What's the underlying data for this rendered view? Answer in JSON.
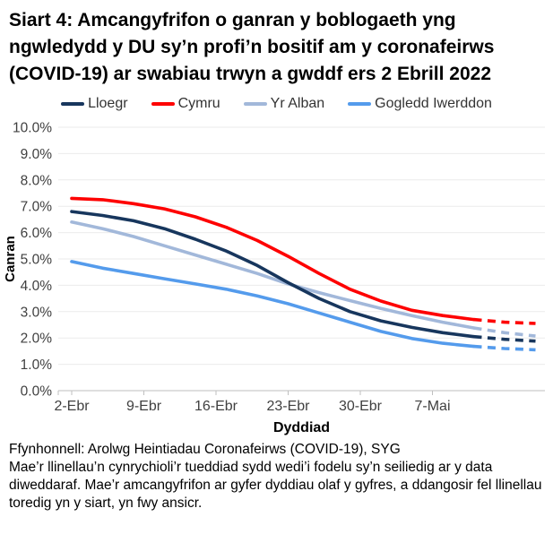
{
  "title": "Siart 4: Amcangyfrifon o ganran y boblogaeth yng ngwledydd y DU sy’n profi’n bositif am y coronafeirws (COVID-19) ar swabiau trwyn a gwddf ers 2 Ebrill 2022",
  "legend": [
    {
      "label": "Lloegr",
      "color": "#17365D"
    },
    {
      "label": "Cymru",
      "color": "#FE0000"
    },
    {
      "label": "Yr Alban",
      "color": "#A2B8DA"
    },
    {
      "label": "Gogledd Iwerddon",
      "color": "#549BEC"
    }
  ],
  "chart_data": {
    "type": "line",
    "title": "Siart 4: Amcangyfrifon o ganran y boblogaeth yng ngwledydd y DU sy’n profi’n bositif am y coronafeirws (COVID-19) ar swabiau trwyn a gwddf ers 2 Ebrill 2022",
    "xlabel": "Dyddiad",
    "ylabel": "Canran",
    "ylim": [
      0,
      10
    ],
    "grid": true,
    "legend_position": "top",
    "y_tick_labels": [
      "0.0%",
      "1.0%",
      "2.0%",
      "3.0%",
      "4.0%",
      "5.0%",
      "6.0%",
      "7.0%",
      "8.0%",
      "9.0%",
      "10.0%"
    ],
    "x_tick_labels": [
      "2-Ebr",
      "9-Ebr",
      "16-Ebr",
      "23-Ebr",
      "30-Ebr",
      "7-Mai"
    ],
    "x_tick_days": [
      0,
      7,
      14,
      21,
      28,
      35
    ],
    "x_days_since_2_ebrill": [
      0,
      3,
      6,
      9,
      12,
      15,
      18,
      21,
      24,
      27,
      30,
      33,
      36,
      39,
      42,
      45
    ],
    "dashed_from_day": 39,
    "series": [
      {
        "name": "Yr Alban",
        "color": "#A2B8DA",
        "values_pct": [
          6.4,
          6.15,
          5.85,
          5.5,
          5.15,
          4.8,
          4.45,
          4.05,
          3.72,
          3.42,
          3.12,
          2.85,
          2.6,
          2.38,
          2.2,
          2.07
        ]
      },
      {
        "name": "Gogledd Iwerddon",
        "color": "#549BEC",
        "values_pct": [
          4.9,
          4.65,
          4.45,
          4.25,
          4.05,
          3.85,
          3.6,
          3.3,
          2.95,
          2.6,
          2.25,
          1.98,
          1.8,
          1.68,
          1.6,
          1.55
        ]
      },
      {
        "name": "Lloegr",
        "color": "#17365D",
        "values_pct": [
          6.8,
          6.65,
          6.45,
          6.15,
          5.75,
          5.3,
          4.75,
          4.1,
          3.5,
          3.0,
          2.65,
          2.4,
          2.2,
          2.05,
          1.95,
          1.88
        ]
      },
      {
        "name": "Cymru",
        "color": "#FE0000",
        "values_pct": [
          7.3,
          7.25,
          7.1,
          6.9,
          6.6,
          6.2,
          5.7,
          5.1,
          4.45,
          3.85,
          3.4,
          3.05,
          2.85,
          2.7,
          2.6,
          2.55
        ]
      }
    ]
  },
  "footer": {
    "source": "Ffynhonnell: Arolwg Heintiadau Coronafeirws (COVID-19), SYG",
    "note": "Mae’r llinellau’n cynrychioli’r tueddiad sydd wedi’i fodelu sy’n seiliedig ar y data diweddaraf. Mae’r amcangyfrifon ar gyfer dyddiau olaf y gyfres, a ddangosir fel llinellau toredig yn y siart, yn fwy ansicr."
  }
}
